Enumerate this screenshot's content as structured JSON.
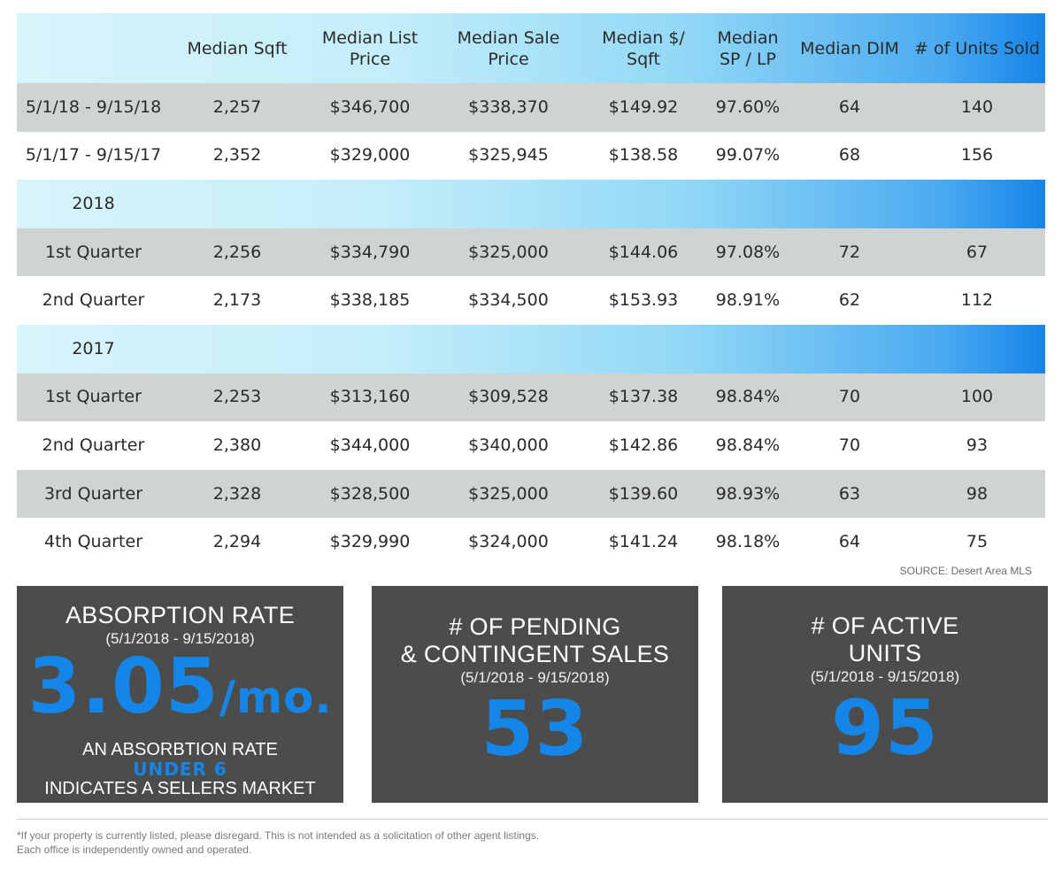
{
  "table": {
    "headers": [
      "",
      "Median Sqft",
      "Median List Price",
      "Median Sale Price",
      "Median $/ Sqft",
      "Median SP / LP",
      "Median DIM",
      "# of Units Sold"
    ],
    "header_lines": {
      "c2": [
        "Median List",
        "Price"
      ],
      "c3": [
        "Median Sale",
        "Price"
      ],
      "c4": [
        "Median $/",
        "Sqft"
      ],
      "c5": [
        "Median",
        "SP / LP"
      ]
    },
    "rows": [
      {
        "type": "data",
        "style": "gray",
        "cells": [
          "5/1/18 - 9/15/18",
          "2,257",
          "$346,700",
          "$338,370",
          "$149.92",
          "97.60%",
          "64",
          "140"
        ]
      },
      {
        "type": "data",
        "style": "white",
        "cells": [
          "5/1/17 - 9/15/17",
          "2,352",
          "$329,000",
          "$325,945",
          "$138.58",
          "99.07%",
          "68",
          "156"
        ]
      },
      {
        "type": "year",
        "label": "2018"
      },
      {
        "type": "data",
        "style": "gray",
        "cells": [
          "1st Quarter",
          "2,256",
          "$334,790",
          "$325,000",
          "$144.06",
          "97.08%",
          "72",
          "67"
        ]
      },
      {
        "type": "data",
        "style": "white",
        "cells": [
          "2nd Quarter",
          "2,173",
          "$338,185",
          "$334,500",
          "$153.93",
          "98.91%",
          "62",
          "112"
        ]
      },
      {
        "type": "year",
        "label": "2017"
      },
      {
        "type": "data",
        "style": "gray",
        "cells": [
          "1st Quarter",
          "2,253",
          "$313,160",
          "$309,528",
          "$137.38",
          "98.84%",
          "70",
          "100"
        ]
      },
      {
        "type": "data",
        "style": "white",
        "cells": [
          "2nd Quarter",
          "2,380",
          "$344,000",
          "$340,000",
          "$142.86",
          "98.84%",
          "70",
          "93"
        ]
      },
      {
        "type": "data",
        "style": "gray",
        "cells": [
          "3rd Quarter",
          "2,328",
          "$328,500",
          "$325,000",
          "$139.60",
          "98.93%",
          "63",
          "98"
        ]
      },
      {
        "type": "data",
        "style": "white",
        "cells": [
          "4th Quarter",
          "2,294",
          "$329,990",
          "$324,000",
          "$141.24",
          "98.18%",
          "64",
          "75"
        ]
      }
    ]
  },
  "source": "SOURCE: Desert Area MLS",
  "panels": {
    "absorption": {
      "title": "ABSORPTION RATE",
      "dates": "(5/1/2018 - 9/15/2018)",
      "value": "3.05",
      "unit": "/mo.",
      "line1": "AN ABSORBTION RATE",
      "highlight": "UNDER 6",
      "line2": "INDICATES A SELLERS MARKET"
    },
    "pending": {
      "title_line1": "# OF PENDING",
      "title_line2": "& CONTINGENT SALES",
      "dates": "(5/1/2018 - 9/15/2018)",
      "value": "53"
    },
    "active": {
      "title_line1": "# OF ACTIVE",
      "title_line2": "UNITS",
      "dates": "(5/1/2018 - 9/15/2018)",
      "value": "95"
    }
  },
  "footer": {
    "line1": "*If your property is currently listed, please disregard. This is not intended as a solicitation of other agent listings.",
    "line2": "Each office is independently owned and operated."
  },
  "colors": {
    "accent_blue": "#1585e7",
    "panel_gray": "#4b4d4d",
    "row_gray": "#cfd3d2"
  }
}
